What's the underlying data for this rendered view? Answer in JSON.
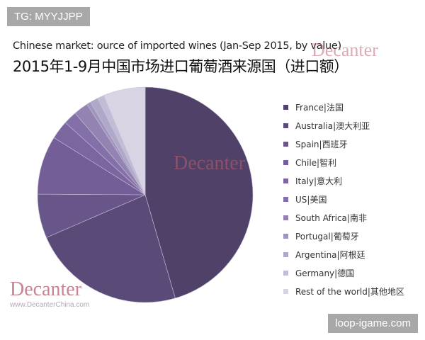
{
  "badge_top": "TG: MYYJJPP",
  "badge_bottom": "loop-igame.com",
  "watermark": {
    "logo": "Decanter",
    "url": "www.DecanterChina.com"
  },
  "chart_data": {
    "type": "pie",
    "title": "Chinese market: ource of imported wines (Jan-Sep 2015, by value)",
    "subtitle": "2015年1-9月中国市场进口葡萄酒来源国（进口额）",
    "legend_position": "right",
    "start_angle": "12 o'clock, clockwise",
    "unit": "percent share (estimated)",
    "slices": [
      {
        "label": "France|法国",
        "value": 45.5,
        "color": "#4f4168"
      },
      {
        "label": "Australia|澳大利亚",
        "value": 23.0,
        "color": "#5a4a78"
      },
      {
        "label": "Spain|西班牙",
        "value": 6.6,
        "color": "#68558a"
      },
      {
        "label": "Chile|智利",
        "value": 8.8,
        "color": "#735e98"
      },
      {
        "label": "Italy|意大利",
        "value": 2.8,
        "color": "#7b66a0"
      },
      {
        "label": "US|美国",
        "value": 2.0,
        "color": "#8470a8"
      },
      {
        "label": "South Africa|南非",
        "value": 2.2,
        "color": "#9283b2"
      },
      {
        "label": "Portugal|葡萄牙",
        "value": 0.6,
        "color": "#a095bd"
      },
      {
        "label": "Argentina|阿根廷",
        "value": 1.2,
        "color": "#b0a8c8"
      },
      {
        "label": "Germany|德国",
        "value": 1.0,
        "color": "#c2bcd6"
      },
      {
        "label": "Rest of the world|其他地区",
        "value": 6.3,
        "color": "#d9d4e4"
      }
    ]
  }
}
